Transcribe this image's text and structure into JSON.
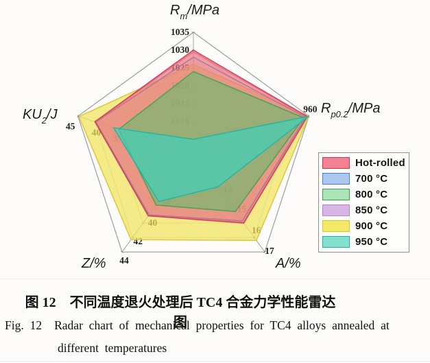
{
  "figure": {
    "caption_zh": "图 12　不同温度退火处理后 TC4 合金力学性能雷达图",
    "caption_en_figno": "Fig. 12",
    "caption_en_text": "Radar chart of mechanical properties for TC4 alloys annealed at",
    "caption_en_line2": "different temperatures"
  },
  "chart_data": {
    "type": "radar",
    "grid": {
      "shape": "pentagon",
      "rings": 6
    },
    "legend_position": "right-bottom",
    "axes": [
      {
        "id": "rm",
        "label_main": "R",
        "label_sub": "m",
        "label_unit": "/MPa",
        "outer": 1035,
        "units_per_ring": 5,
        "ticks": [
          1035,
          1030,
          1025,
          1020,
          1015,
          1010
        ]
      },
      {
        "id": "rp02",
        "label_main": "R",
        "label_sub": "p0.2",
        "label_unit": "/MPa",
        "outer": 960,
        "units_per_ring": 5,
        "ticks": [
          960
        ]
      },
      {
        "id": "a",
        "label_main": "A",
        "label_sub": "",
        "label_unit": "/%",
        "outer": 17,
        "units_per_ring": 1,
        "ticks": [
          14,
          15,
          16,
          17
        ]
      },
      {
        "id": "z",
        "label_main": "Z",
        "label_sub": "",
        "label_unit": "/%",
        "outer": 44,
        "units_per_ring": 2,
        "ticks": [
          38,
          40,
          42,
          44
        ]
      },
      {
        "id": "ku2",
        "label_main": "KU",
        "label_sub": "2",
        "label_unit": "/J",
        "outer": 45,
        "units_per_ring": 5,
        "ticks": [
          45,
          40,
          35
        ]
      }
    ],
    "series": [
      {
        "name": "Hot-rolled",
        "legend_color": "#F28191",
        "stroke": "#E0314B",
        "fill": "#ED6C6E",
        "fill_opacity": 0.62,
        "values": {
          "rm": 1030,
          "rp02": 959.6,
          "a": 15.0,
          "z": 39.0,
          "ku2": 40.0
        }
      },
      {
        "name": "700 °C",
        "legend_color": "#A9C7EF",
        "stroke": "#4A7FD0",
        "fill": "#A9C7EF",
        "fill_opacity": 0.18,
        "values": {
          "rm": 1028,
          "rp02": 959.0,
          "a": 14.85,
          "z": 38.85,
          "ku2": 39.7
        }
      },
      {
        "name": "800 °C",
        "legend_color": "#ABE4B6",
        "stroke": "#3FA253",
        "fill": "#59C06B",
        "fill_opacity": 0.55,
        "values": {
          "rm": 1024,
          "rp02": 958.5,
          "a": 14.2,
          "z": 37.5,
          "ku2": 33.0
        }
      },
      {
        "name": "850 °C",
        "legend_color": "#D7B6E6",
        "stroke": "#B184CC",
        "fill": "#D9BBE8",
        "fill_opacity": 0.18,
        "values": {
          "rm": 1029.5,
          "rp02": 959.4,
          "a": 14.95,
          "z": 38.95,
          "ku2": 39.9
        }
      },
      {
        "name": "900 °C",
        "legend_color": "#F3E967",
        "stroke": "#D9C430",
        "fill": "#F0E35C",
        "fill_opacity": 0.72,
        "values": {
          "rm": 1026,
          "rp02": 960,
          "a": 16.2,
          "z": 42.3,
          "ku2": 44.7
        }
      },
      {
        "name": "950 °C",
        "legend_color": "#85DFCF",
        "stroke": "#1FB4A2",
        "fill": "#3ED2BD",
        "fill_opacity": 0.68,
        "values": {
          "rm": 1005,
          "rp02": 960,
          "a": 12.5,
          "z": 37.0,
          "ku2": 34.5
        }
      }
    ],
    "draw_order": [
      "900 °C",
      "850 °C",
      "700 °C",
      "Hot-rolled",
      "800 °C",
      "950 °C"
    ]
  }
}
